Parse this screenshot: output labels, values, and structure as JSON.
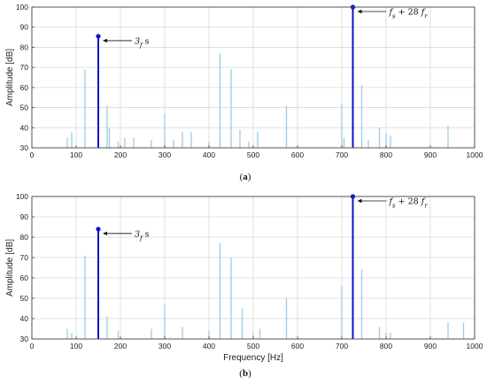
{
  "chart_data": [
    {
      "type": "bar",
      "panel_label_open": "(",
      "panel_label_letter": "a",
      "panel_label_close": ")",
      "xlabel": "",
      "ylabel": "Amplitude [dB]",
      "xlim": [
        0,
        1000
      ],
      "ylim": [
        30,
        100
      ],
      "xticks": [
        "0",
        "100",
        "200",
        "300",
        "400",
        "500",
        "600",
        "700",
        "800",
        "900",
        "1000"
      ],
      "yticks": [
        "30",
        "40",
        "50",
        "60",
        "70",
        "80",
        "90",
        "100"
      ],
      "grid": true,
      "minor_lines": [
        {
          "x": 80,
          "y": 35
        },
        {
          "x": 90,
          "y": 38
        },
        {
          "x": 120,
          "y": 69
        },
        {
          "x": 170,
          "y": 51
        },
        {
          "x": 175,
          "y": 40
        },
        {
          "x": 195,
          "y": 33
        },
        {
          "x": 210,
          "y": 35
        },
        {
          "x": 230,
          "y": 35
        },
        {
          "x": 270,
          "y": 34
        },
        {
          "x": 300,
          "y": 47
        },
        {
          "x": 320,
          "y": 34
        },
        {
          "x": 340,
          "y": 38
        },
        {
          "x": 360,
          "y": 38
        },
        {
          "x": 400,
          "y": 33
        },
        {
          "x": 425,
          "y": 77
        },
        {
          "x": 450,
          "y": 69
        },
        {
          "x": 470,
          "y": 39
        },
        {
          "x": 490,
          "y": 33
        },
        {
          "x": 510,
          "y": 38
        },
        {
          "x": 575,
          "y": 51
        },
        {
          "x": 700,
          "y": 52
        },
        {
          "x": 705,
          "y": 35
        },
        {
          "x": 745,
          "y": 61
        },
        {
          "x": 760,
          "y": 34
        },
        {
          "x": 785,
          "y": 40
        },
        {
          "x": 800,
          "y": 37
        },
        {
          "x": 810,
          "y": 36
        },
        {
          "x": 940,
          "y": 41
        }
      ],
      "major_lines": [
        {
          "x": 150,
          "y": 85.5,
          "label": "3f_s",
          "label_parts": [
            "3",
            "f",
            "s",
            "",
            ""
          ]
        },
        {
          "x": 725,
          "y": 100,
          "label": "f_s+28f_r",
          "label_parts": [
            "f",
            "s",
            "+ 28",
            "f",
            "r"
          ]
        }
      ]
    },
    {
      "type": "bar",
      "panel_label_open": "(",
      "panel_label_letter": "b",
      "panel_label_close": ")",
      "xlabel": "Frequency [Hz]",
      "ylabel": "Amplitude [dB]",
      "xlim": [
        0,
        1000
      ],
      "ylim": [
        30,
        100
      ],
      "xticks": [
        "0",
        "100",
        "200",
        "300",
        "400",
        "500",
        "600",
        "700",
        "800",
        "900",
        "1000"
      ],
      "yticks": [
        "30",
        "40",
        "50",
        "60",
        "70",
        "80",
        "90",
        "100"
      ],
      "grid": true,
      "minor_lines": [
        {
          "x": 80,
          "y": 35
        },
        {
          "x": 90,
          "y": 33
        },
        {
          "x": 120,
          "y": 71
        },
        {
          "x": 170,
          "y": 41
        },
        {
          "x": 195,
          "y": 34
        },
        {
          "x": 270,
          "y": 35
        },
        {
          "x": 300,
          "y": 47
        },
        {
          "x": 340,
          "y": 36
        },
        {
          "x": 400,
          "y": 34
        },
        {
          "x": 425,
          "y": 77
        },
        {
          "x": 450,
          "y": 70
        },
        {
          "x": 475,
          "y": 45
        },
        {
          "x": 500,
          "y": 33
        },
        {
          "x": 515,
          "y": 35
        },
        {
          "x": 575,
          "y": 50
        },
        {
          "x": 700,
          "y": 56
        },
        {
          "x": 745,
          "y": 64
        },
        {
          "x": 785,
          "y": 36
        },
        {
          "x": 800,
          "y": 33
        },
        {
          "x": 810,
          "y": 33
        },
        {
          "x": 940,
          "y": 38
        },
        {
          "x": 975,
          "y": 38
        }
      ],
      "major_lines": [
        {
          "x": 150,
          "y": 84,
          "label": "3f_s",
          "label_parts": [
            "3",
            "f",
            "s",
            "",
            ""
          ]
        },
        {
          "x": 725,
          "y": 100,
          "label": "f_s+28f_r",
          "label_parts": [
            "f",
            "s",
            "+ 28",
            "f",
            "r"
          ]
        }
      ]
    }
  ],
  "colors": {
    "major": "#1010c8",
    "minor": "#9ccbe8",
    "grid": "#d8d8d8",
    "axis": "#444444"
  }
}
